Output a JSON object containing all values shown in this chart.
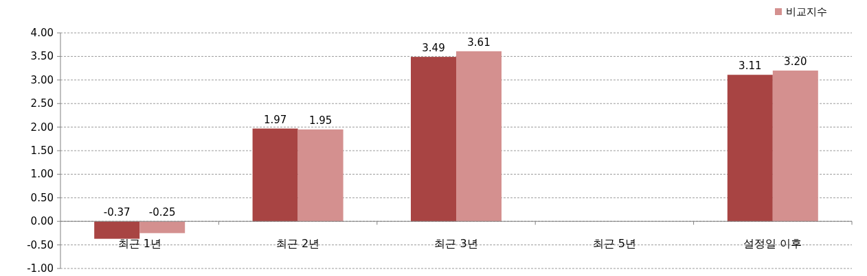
{
  "chart_data": {
    "type": "bar",
    "categories": [
      "최근 1년",
      "최근 2년",
      "최근 3년",
      "최근 5년",
      "설정일 이후"
    ],
    "series": [
      {
        "color": "#a84443",
        "values": [
          -0.37,
          1.97,
          3.49,
          null,
          3.11
        ],
        "value_labels": [
          "-0.37",
          "1.97",
          "3.49",
          null,
          "3.11"
        ]
      },
      {
        "name": "비교지수",
        "color": "#d4908f",
        "values": [
          -0.25,
          1.95,
          3.61,
          null,
          3.2
        ],
        "value_labels": [
          "-0.25",
          "1.95",
          "3.61",
          null,
          "3.20"
        ]
      }
    ],
    "ylim": [
      -1,
      4
    ],
    "yticks": [
      {
        "value": -1,
        "label": "-1.00"
      },
      {
        "value": -0.5,
        "label": "-0.50"
      },
      {
        "value": 0,
        "label": "0.00"
      },
      {
        "value": 0.5,
        "label": "0.50"
      },
      {
        "value": 1,
        "label": "1.00"
      },
      {
        "value": 1.5,
        "label": "1.50"
      },
      {
        "value": 2,
        "label": "2.00"
      },
      {
        "value": 2.5,
        "label": "2.50"
      },
      {
        "value": 3,
        "label": "3.00"
      },
      {
        "value": 3.5,
        "label": "3.50"
      },
      {
        "value": 4,
        "label": "4.00"
      }
    ],
    "grid": "y",
    "legend": "top right"
  }
}
